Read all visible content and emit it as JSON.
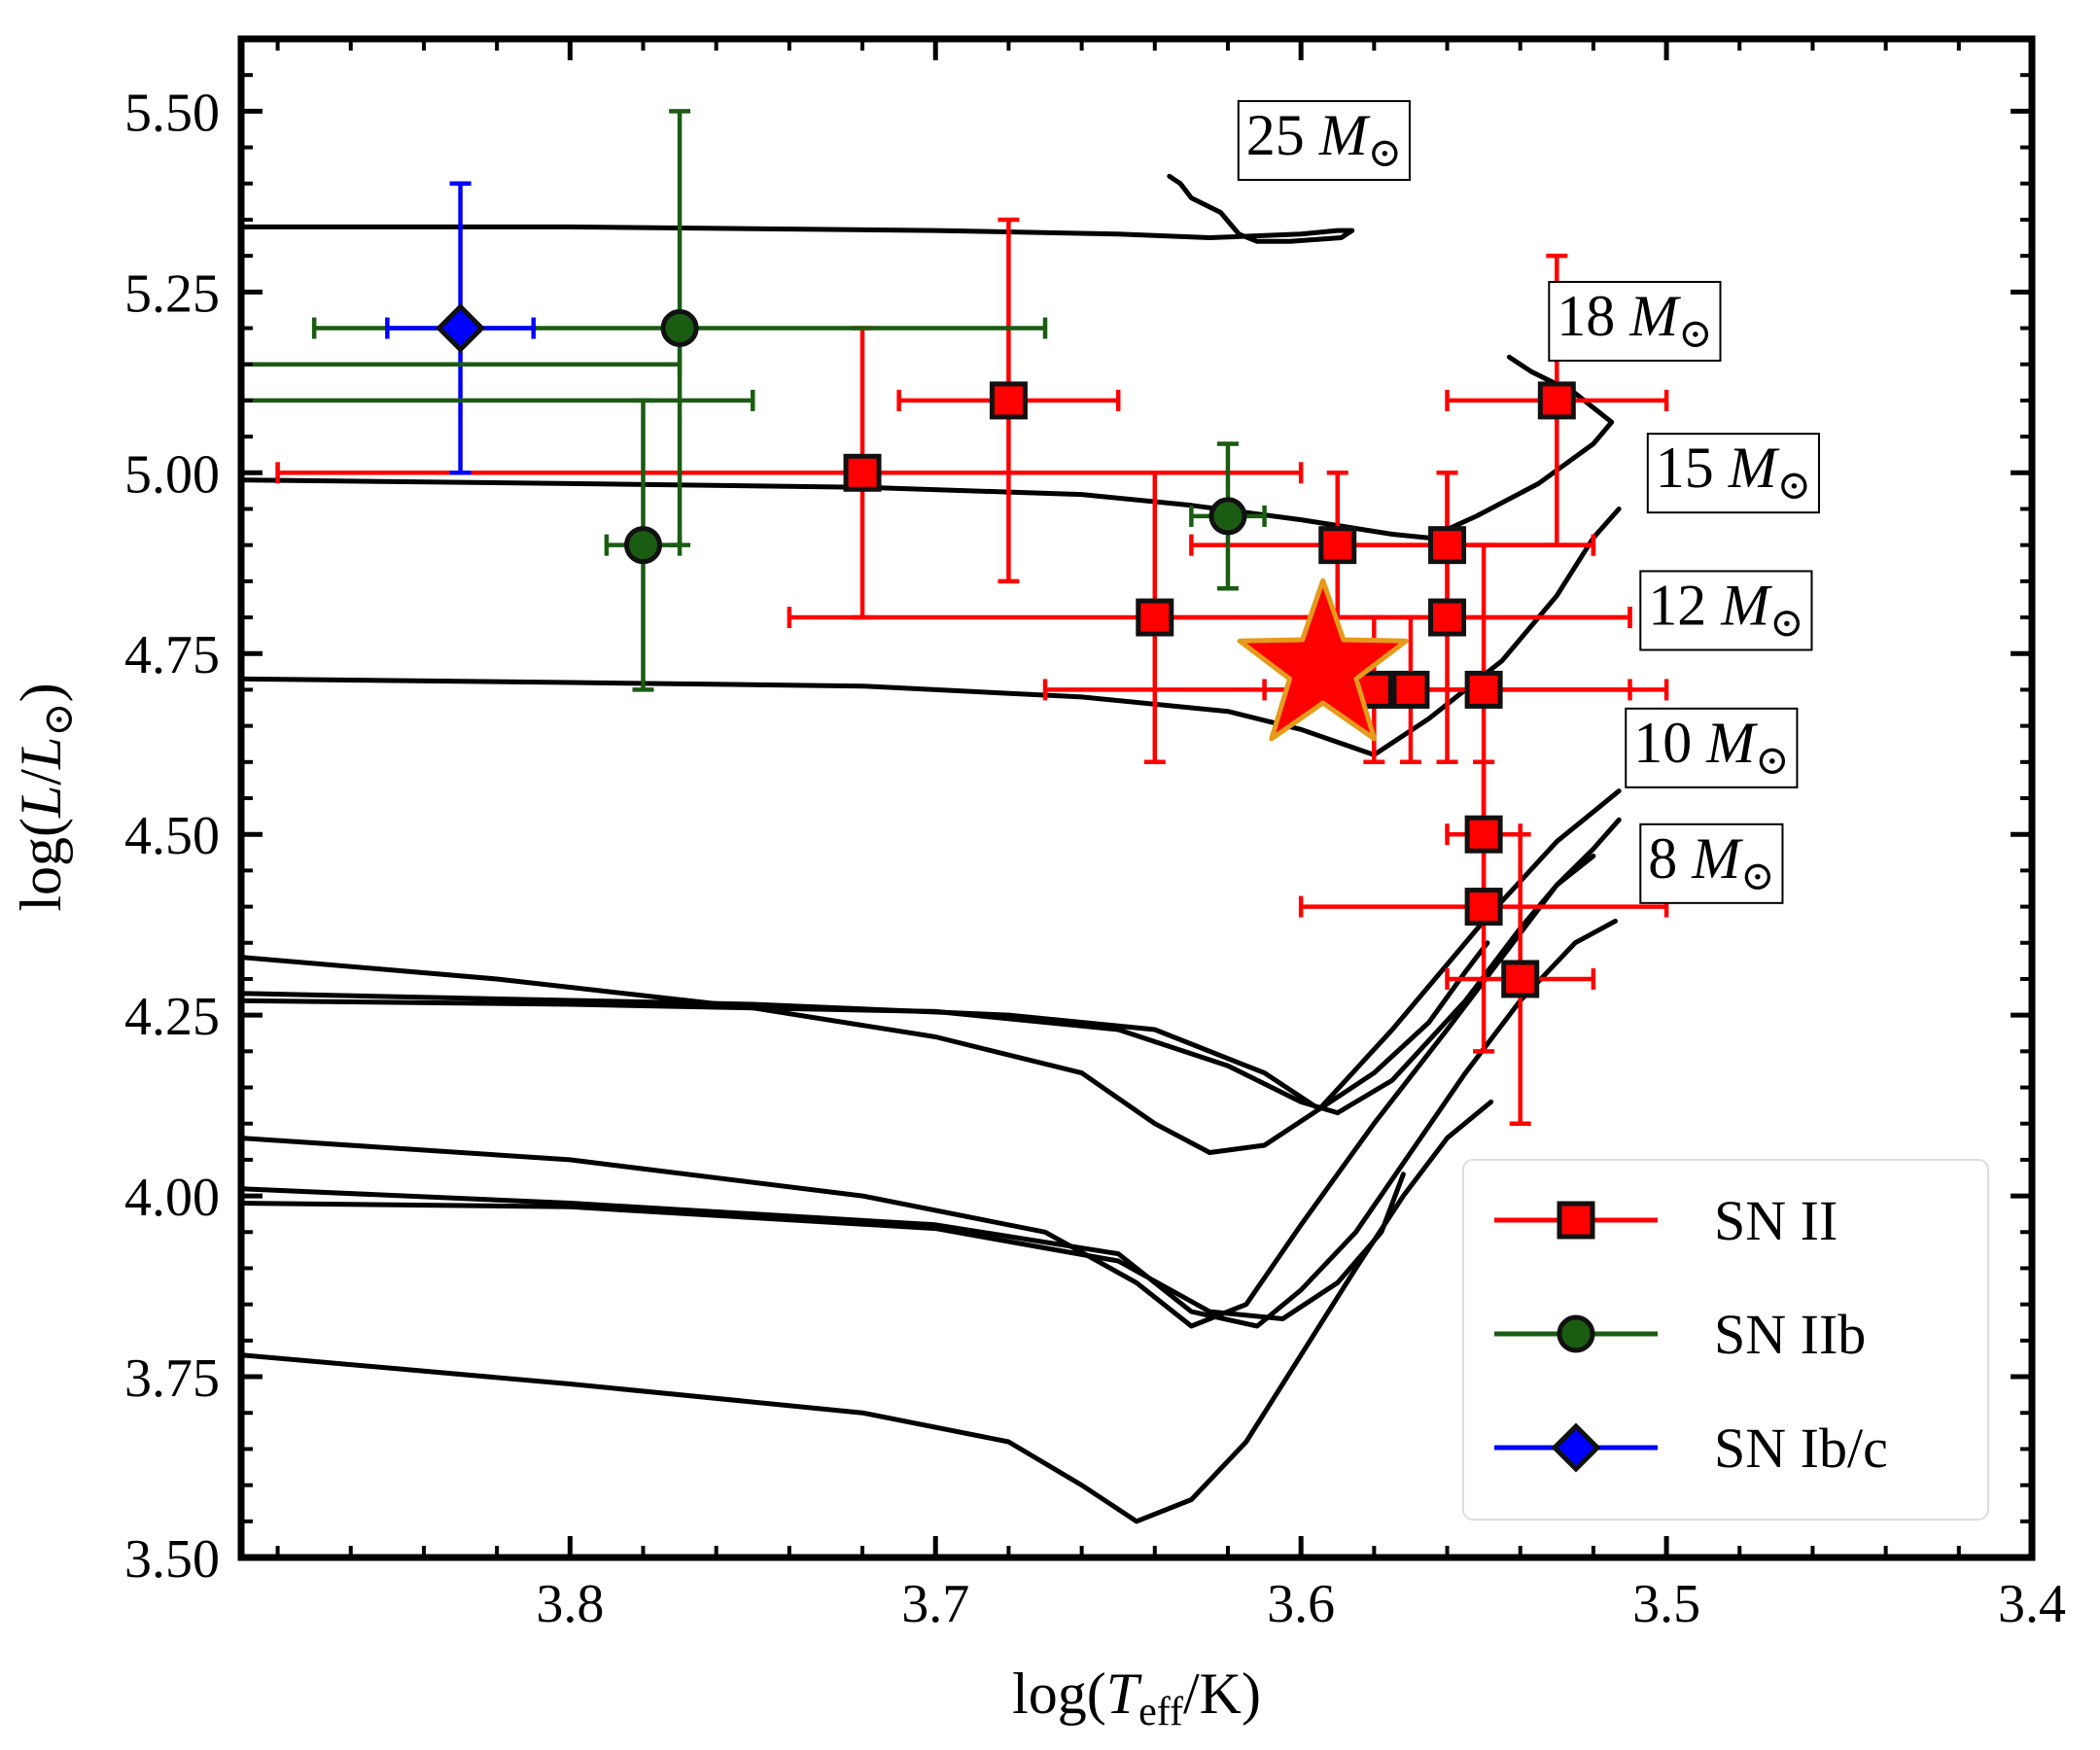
{
  "chart_data": {
    "type": "scatter",
    "xlabel": "log(T_eff/K)",
    "ylabel": "log(L/L_⊙)",
    "xlim": [
      3.89,
      3.4
    ],
    "ylim": [
      3.5,
      5.6
    ],
    "x_ticks": [
      "3.8",
      "3.7",
      "3.6",
      "3.5",
      "3.4"
    ],
    "x_tick_values": [
      3.8,
      3.7,
      3.6,
      3.5,
      3.4
    ],
    "y_ticks": [
      "3.50",
      "3.75",
      "4.00",
      "4.25",
      "4.50",
      "4.75",
      "5.00",
      "5.25",
      "5.50"
    ],
    "y_tick_values": [
      3.5,
      3.75,
      4.0,
      4.25,
      4.5,
      4.75,
      5.0,
      5.25,
      5.5
    ],
    "colors": {
      "sn2": "#ff0000",
      "sn2b": "#1a5c12",
      "sn1bc": "#0000ff",
      "star": "#ff0000",
      "star_edge": "#e69a1a",
      "track": "#000000"
    },
    "series": [
      {
        "name": "SN II",
        "marker": "square",
        "points": [
          {
            "x": 3.72,
            "y": 5.0,
            "xerr": [
              0.16,
              0.12
            ],
            "yerr": [
              0.2,
              0.2
            ]
          },
          {
            "x": 3.68,
            "y": 5.1,
            "xerr": [
              0.03,
              0.03
            ],
            "yerr": [
              0.25,
              0.25
            ]
          },
          {
            "x": 3.64,
            "y": 4.8,
            "xerr": [
              0.1,
              0.13
            ],
            "yerr": [
              0.2,
              0.2
            ]
          },
          {
            "x": 3.59,
            "y": 4.9,
            "xerr": [
              0.04,
              0.07
            ],
            "yerr": [
              0.1,
              0.1
            ]
          },
          {
            "x": 3.58,
            "y": 4.7,
            "xerr": [
              0.03,
              0.01
            ],
            "yerr": [
              0.1,
              0.1
            ]
          },
          {
            "x": 3.57,
            "y": 4.7,
            "xerr": [
              0.1,
              0.07
            ],
            "yerr": [
              0.1,
              0.1
            ]
          },
          {
            "x": 3.56,
            "y": 4.9,
            "xerr": [
              0.03,
              0.04
            ],
            "yerr": [
              0.1,
              0.1
            ]
          },
          {
            "x": 3.56,
            "y": 4.8,
            "xerr": [
              0.08,
              0.05
            ],
            "yerr": [
              0.2,
              0.2
            ]
          },
          {
            "x": 3.55,
            "y": 4.7,
            "xerr": [
              0.02,
              0.04
            ],
            "yerr": [
              0.2,
              0.2
            ]
          },
          {
            "x": 3.53,
            "y": 5.1,
            "xerr": [
              0.03,
              0.03
            ],
            "yerr": [
              0.2,
              0.2
            ]
          },
          {
            "x": 3.55,
            "y": 4.5,
            "xerr": [
              0.01,
              0.01
            ],
            "yerr": [
              0.1,
              0.1
            ]
          },
          {
            "x": 3.55,
            "y": 4.4,
            "xerr": [
              0.05,
              0.05
            ],
            "yerr": [
              0.2,
              0.2
            ]
          },
          {
            "x": 3.54,
            "y": 4.3,
            "xerr": [
              0.02,
              0.02
            ],
            "yerr": [
              0.2,
              0.2
            ]
          }
        ]
      },
      {
        "name": "SN IIb",
        "marker": "circle",
        "points": [
          {
            "x": 3.77,
            "y": 5.2,
            "xerr": [
              0.1,
              0.1
            ],
            "yerr": [
              0.3,
              0.3
            ]
          },
          {
            "x": 3.78,
            "y": 4.9,
            "xerr": [
              0.01,
              0.01
            ],
            "yerr": [
              0.2,
              0.2
            ]
          },
          {
            "x": 3.62,
            "y": 4.94,
            "xerr": [
              0.01,
              0.01
            ],
            "yerr": [
              0.1,
              0.1
            ]
          }
        ]
      },
      {
        "name": "SN Ib/c",
        "marker": "diamond",
        "points": [
          {
            "x": 3.83,
            "y": 5.2,
            "xerr": [
              0.02,
              0.02
            ],
            "yerr": [
              0.2,
              0.2
            ]
          }
        ]
      }
    ],
    "extra_error_bars": [
      {
        "color": "sn2b",
        "y": 5.15,
        "x_from": 3.77,
        "x_to": 3.89
      },
      {
        "color": "sn2b",
        "y": 5.1,
        "x_from": 3.75,
        "x_to": 3.89
      }
    ],
    "highlight": {
      "marker": "star",
      "x": 3.594,
      "y": 4.73
    },
    "tracks": [
      {
        "mass": "25",
        "points": [
          [
            3.89,
            5.34
          ],
          [
            3.8,
            5.34
          ],
          [
            3.7,
            5.335
          ],
          [
            3.65,
            5.33
          ],
          [
            3.625,
            5.325
          ],
          [
            3.6,
            5.33
          ],
          [
            3.59,
            5.335
          ],
          [
            3.586,
            5.335
          ],
          [
            3.589,
            5.325
          ],
          [
            3.603,
            5.32
          ],
          [
            3.612,
            5.32
          ],
          [
            3.617,
            5.33
          ],
          [
            3.622,
            5.36
          ],
          [
            3.63,
            5.38
          ],
          [
            3.633,
            5.4
          ],
          [
            3.636,
            5.41
          ]
        ]
      },
      {
        "mass": "18",
        "points": [
          [
            3.89,
            4.99
          ],
          [
            3.8,
            4.985
          ],
          [
            3.72,
            4.98
          ],
          [
            3.66,
            4.97
          ],
          [
            3.63,
            4.955
          ],
          [
            3.6,
            4.935
          ],
          [
            3.575,
            4.915
          ],
          [
            3.565,
            4.91
          ],
          [
            3.552,
            4.94
          ],
          [
            3.535,
            4.985
          ],
          [
            3.52,
            5.04
          ],
          [
            3.515,
            5.07
          ],
          [
            3.525,
            5.11
          ],
          [
            3.537,
            5.14
          ],
          [
            3.543,
            5.16
          ]
        ]
      },
      {
        "mass": "15",
        "points": [
          [
            3.89,
            4.715
          ],
          [
            3.8,
            4.71
          ],
          [
            3.72,
            4.705
          ],
          [
            3.66,
            4.69
          ],
          [
            3.62,
            4.67
          ],
          [
            3.6,
            4.645
          ],
          [
            3.58,
            4.61
          ],
          [
            3.565,
            4.66
          ],
          [
            3.545,
            4.74
          ],
          [
            3.53,
            4.83
          ],
          [
            3.52,
            4.91
          ],
          [
            3.513,
            4.95
          ]
        ]
      },
      {
        "mass": "12",
        "points": [
          [
            3.89,
            4.33
          ],
          [
            3.82,
            4.3
          ],
          [
            3.75,
            4.26
          ],
          [
            3.7,
            4.22
          ],
          [
            3.66,
            4.17
          ],
          [
            3.64,
            4.1
          ],
          [
            3.625,
            4.06
          ],
          [
            3.61,
            4.07
          ],
          [
            3.595,
            4.12
          ],
          [
            3.575,
            4.23
          ],
          [
            3.55,
            4.38
          ],
          [
            3.53,
            4.49
          ],
          [
            3.513,
            4.56
          ]
        ]
      },
      {
        "mass": "12b",
        "points": [
          [
            3.89,
            4.27
          ],
          [
            3.8,
            4.265
          ],
          [
            3.7,
            4.255
          ],
          [
            3.65,
            4.23
          ],
          [
            3.62,
            4.18
          ],
          [
            3.6,
            4.13
          ],
          [
            3.59,
            4.115
          ],
          [
            3.575,
            4.16
          ],
          [
            3.555,
            4.27
          ],
          [
            3.54,
            4.37
          ],
          [
            3.53,
            4.43
          ],
          [
            3.52,
            4.47
          ]
        ]
      },
      {
        "mass": "12c",
        "points": [
          [
            3.89,
            4.28
          ],
          [
            3.75,
            4.265
          ],
          [
            3.68,
            4.25
          ],
          [
            3.64,
            4.23
          ],
          [
            3.61,
            4.17
          ],
          [
            3.595,
            4.12
          ],
          [
            3.58,
            4.17
          ],
          [
            3.565,
            4.24
          ],
          [
            3.555,
            4.31
          ],
          [
            3.549,
            4.35
          ]
        ]
      },
      {
        "mass": "10",
        "points": [
          [
            3.89,
            4.08
          ],
          [
            3.8,
            4.05
          ],
          [
            3.72,
            4.0
          ],
          [
            3.67,
            3.95
          ],
          [
            3.645,
            3.88
          ],
          [
            3.63,
            3.82
          ],
          [
            3.615,
            3.85
          ],
          [
            3.6,
            3.96
          ],
          [
            3.58,
            4.1
          ],
          [
            3.56,
            4.23
          ],
          [
            3.545,
            4.33
          ],
          [
            3.53,
            4.43
          ],
          [
            3.52,
            4.48
          ],
          [
            3.513,
            4.52
          ]
        ]
      },
      {
        "mass": "10b",
        "points": [
          [
            3.89,
            4.01
          ],
          [
            3.8,
            3.99
          ],
          [
            3.7,
            3.96
          ],
          [
            3.65,
            3.92
          ],
          [
            3.63,
            3.84
          ],
          [
            3.612,
            3.82
          ],
          [
            3.6,
            3.87
          ],
          [
            3.585,
            3.95
          ],
          [
            3.57,
            4.06
          ],
          [
            3.555,
            4.17
          ],
          [
            3.54,
            4.27
          ],
          [
            3.525,
            4.35
          ],
          [
            3.514,
            4.38
          ]
        ]
      },
      {
        "mass": "10c",
        "points": [
          [
            3.89,
            3.99
          ],
          [
            3.8,
            3.985
          ],
          [
            3.7,
            3.955
          ],
          [
            3.65,
            3.91
          ],
          [
            3.625,
            3.84
          ],
          [
            3.605,
            3.83
          ],
          [
            3.59,
            3.88
          ],
          [
            3.578,
            3.95
          ],
          [
            3.572,
            4.03
          ]
        ]
      },
      {
        "mass": "8",
        "points": [
          [
            3.89,
            3.78
          ],
          [
            3.8,
            3.74
          ],
          [
            3.72,
            3.7
          ],
          [
            3.68,
            3.66
          ],
          [
            3.66,
            3.6
          ],
          [
            3.645,
            3.55
          ],
          [
            3.63,
            3.58
          ],
          [
            3.615,
            3.66
          ],
          [
            3.6,
            3.78
          ],
          [
            3.585,
            3.9
          ],
          [
            3.572,
            4.0
          ],
          [
            3.56,
            4.08
          ],
          [
            3.548,
            4.13
          ]
        ]
      }
    ],
    "track_labels": [
      {
        "text": "25",
        "x": 3.615,
        "y": 5.44
      },
      {
        "text": "18",
        "x": 3.53,
        "y": 5.19
      },
      {
        "text": "15",
        "x": 3.503,
        "y": 4.98
      },
      {
        "text": "12",
        "x": 3.505,
        "y": 4.79
      },
      {
        "text": "10",
        "x": 3.509,
        "y": 4.6
      },
      {
        "text": "8",
        "x": 3.505,
        "y": 4.44
      }
    ],
    "track_label_unit": "M",
    "track_label_sub": "⊙",
    "legend": {
      "placement": "bottom-right",
      "entries": [
        "SN II",
        "SN IIb",
        "SN Ib/c"
      ]
    }
  }
}
